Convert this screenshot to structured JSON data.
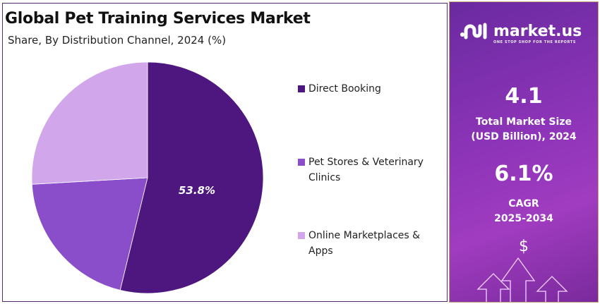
{
  "chart_data": {
    "type": "pie",
    "title": "Global Pet Training Services Market",
    "subtitle": "Share, By Distribution Channel, 2024 (%)",
    "categories": [
      "Direct Booking",
      "Pet Stores & Veterinary Clinics",
      "Online Marketplaces & Apps"
    ],
    "values": [
      53.8,
      20.3,
      25.9
    ],
    "data_labels": [
      "53.8%",
      "",
      ""
    ],
    "colors": [
      "#4e1780",
      "#8a4ecb",
      "#d2a6ea"
    ],
    "legend_position": "right",
    "start_angle": "12 o'clock, clockwise"
  },
  "side_panel": {
    "brand": "market.us",
    "tagline": "ONE STOP SHOP FOR THE REPORTS",
    "market_size_value": "4.1",
    "market_size_label_1": "Total Market Size",
    "market_size_label_2": "(USD Billion), 2024",
    "cagr_value": "6.1%",
    "cagr_label_1": "CAGR",
    "cagr_label_2": "2025-2034",
    "dollar_symbol": "$"
  }
}
